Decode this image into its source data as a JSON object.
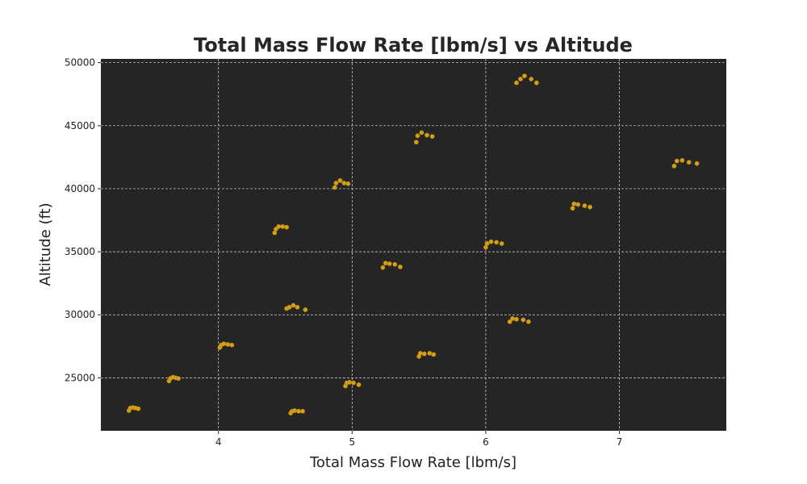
{
  "chart_data": {
    "type": "scatter",
    "title": "Total Mass Flow Rate [lbm/s] vs Altitude",
    "xlabel": "Total Mass Flow Rate [lbm/s]",
    "ylabel": "Altitude (ft)",
    "xlim": [
      3.12,
      7.8
    ],
    "ylim": [
      20800,
      50300
    ],
    "xticks": [
      4,
      5,
      6,
      7
    ],
    "yticks": [
      25000,
      30000,
      35000,
      40000,
      45000,
      50000
    ],
    "grid": true,
    "colors": {
      "plot_background": "#252525",
      "point": "#d4a017",
      "grid": "#d8d8d8"
    },
    "points": [
      {
        "x": 3.33,
        "y": 22400
      },
      {
        "x": 3.34,
        "y": 22600
      },
      {
        "x": 3.36,
        "y": 22650
      },
      {
        "x": 3.38,
        "y": 22600
      },
      {
        "x": 3.4,
        "y": 22550
      },
      {
        "x": 3.63,
        "y": 24750
      },
      {
        "x": 3.64,
        "y": 24950
      },
      {
        "x": 3.66,
        "y": 25050
      },
      {
        "x": 3.68,
        "y": 25000
      },
      {
        "x": 3.7,
        "y": 24950
      },
      {
        "x": 4.01,
        "y": 27400
      },
      {
        "x": 4.02,
        "y": 27600
      },
      {
        "x": 4.04,
        "y": 27700
      },
      {
        "x": 4.07,
        "y": 27650
      },
      {
        "x": 4.1,
        "y": 27600
      },
      {
        "x": 4.42,
        "y": 36500
      },
      {
        "x": 4.43,
        "y": 36800
      },
      {
        "x": 4.45,
        "y": 37000
      },
      {
        "x": 4.48,
        "y": 37000
      },
      {
        "x": 4.51,
        "y": 36950
      },
      {
        "x": 4.51,
        "y": 30500
      },
      {
        "x": 4.53,
        "y": 30600
      },
      {
        "x": 4.56,
        "y": 30750
      },
      {
        "x": 4.59,
        "y": 30600
      },
      {
        "x": 4.65,
        "y": 30400
      },
      {
        "x": 4.54,
        "y": 22200
      },
      {
        "x": 4.55,
        "y": 22350
      },
      {
        "x": 4.57,
        "y": 22400
      },
      {
        "x": 4.6,
        "y": 22350
      },
      {
        "x": 4.63,
        "y": 22350
      },
      {
        "x": 4.87,
        "y": 40100
      },
      {
        "x": 4.88,
        "y": 40450
      },
      {
        "x": 4.91,
        "y": 40650
      },
      {
        "x": 4.94,
        "y": 40450
      },
      {
        "x": 4.97,
        "y": 40400
      },
      {
        "x": 4.95,
        "y": 24350
      },
      {
        "x": 4.96,
        "y": 24600
      },
      {
        "x": 4.98,
        "y": 24650
      },
      {
        "x": 5.01,
        "y": 24600
      },
      {
        "x": 5.05,
        "y": 24450
      },
      {
        "x": 5.23,
        "y": 33750
      },
      {
        "x": 5.25,
        "y": 34100
      },
      {
        "x": 5.28,
        "y": 34050
      },
      {
        "x": 5.32,
        "y": 34000
      },
      {
        "x": 5.36,
        "y": 33800
      },
      {
        "x": 5.48,
        "y": 43700
      },
      {
        "x": 5.49,
        "y": 44200
      },
      {
        "x": 5.52,
        "y": 44450
      },
      {
        "x": 5.56,
        "y": 44250
      },
      {
        "x": 5.6,
        "y": 44150
      },
      {
        "x": 5.5,
        "y": 26700
      },
      {
        "x": 5.51,
        "y": 26950
      },
      {
        "x": 5.54,
        "y": 26900
      },
      {
        "x": 5.58,
        "y": 26950
      },
      {
        "x": 5.61,
        "y": 26850
      },
      {
        "x": 6.0,
        "y": 35350
      },
      {
        "x": 6.01,
        "y": 35650
      },
      {
        "x": 6.04,
        "y": 35800
      },
      {
        "x": 6.08,
        "y": 35750
      },
      {
        "x": 6.12,
        "y": 35650
      },
      {
        "x": 6.18,
        "y": 29450
      },
      {
        "x": 6.2,
        "y": 29700
      },
      {
        "x": 6.23,
        "y": 29650
      },
      {
        "x": 6.28,
        "y": 29600
      },
      {
        "x": 6.32,
        "y": 29450
      },
      {
        "x": 6.23,
        "y": 48400
      },
      {
        "x": 6.26,
        "y": 48700
      },
      {
        "x": 6.29,
        "y": 48950
      },
      {
        "x": 6.34,
        "y": 48700
      },
      {
        "x": 6.38,
        "y": 48400
      },
      {
        "x": 6.65,
        "y": 38450
      },
      {
        "x": 6.66,
        "y": 38800
      },
      {
        "x": 6.69,
        "y": 38750
      },
      {
        "x": 6.74,
        "y": 38650
      },
      {
        "x": 6.78,
        "y": 38550
      },
      {
        "x": 7.41,
        "y": 41800
      },
      {
        "x": 7.43,
        "y": 42200
      },
      {
        "x": 7.47,
        "y": 42250
      },
      {
        "x": 7.52,
        "y": 42100
      },
      {
        "x": 7.58,
        "y": 42000
      }
    ]
  }
}
